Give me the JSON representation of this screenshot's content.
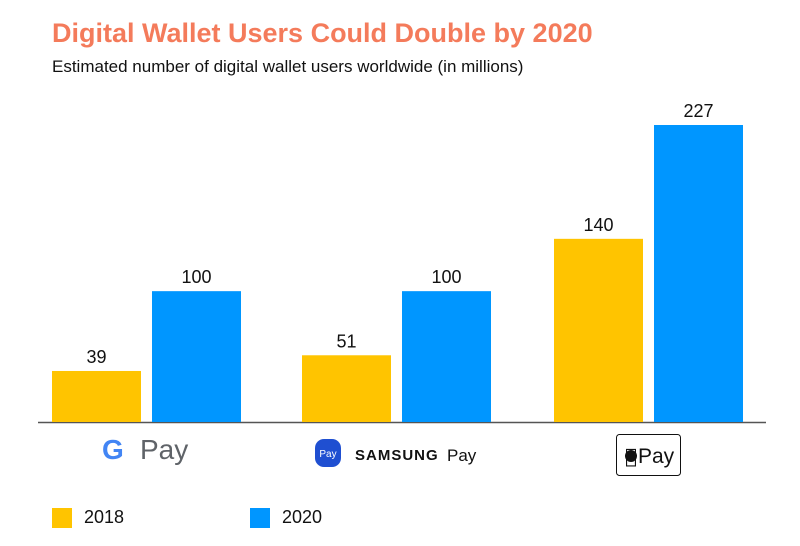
{
  "chart_data": {
    "type": "bar",
    "title": "Digital Wallet Users Could Double by 2020",
    "subtitle": "Estimated number of digital wallet users worldwide (in millions)",
    "categories": [
      "G Pay",
      "SAMSUNG Pay",
      "Apple Pay"
    ],
    "series": [
      {
        "name": "2018",
        "values": [
          39,
          51,
          140
        ],
        "color": "#ffc400"
      },
      {
        "name": "2020",
        "values": [
          100,
          100,
          227
        ],
        "color": "#0096ff"
      }
    ],
    "ylim": [
      0,
      227
    ],
    "grid": false,
    "legend": "bottom-left"
  }
}
